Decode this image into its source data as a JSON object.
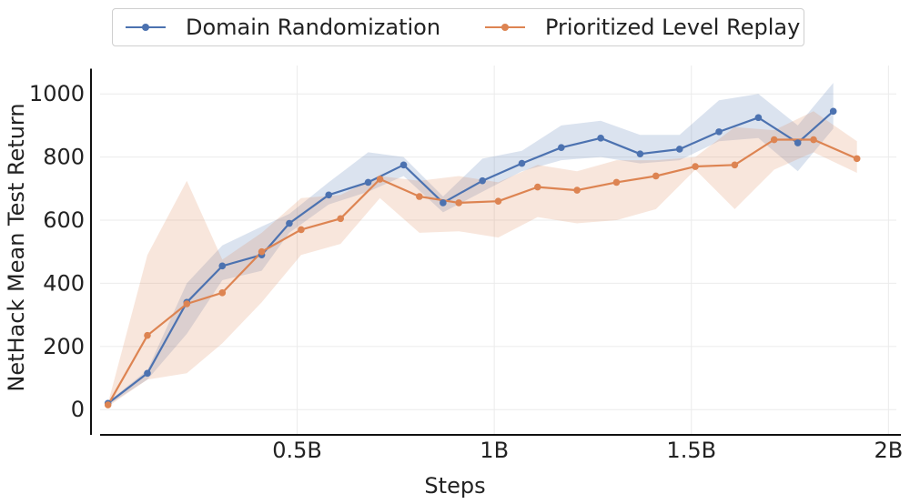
{
  "chart_data": {
    "type": "line",
    "xlabel": "Steps",
    "ylabel": "NetHack Mean Test Return",
    "xlim": [
      0.0,
      2.02
    ],
    "ylim": [
      -80,
      1090
    ],
    "x_ticks": [
      0.5,
      1.0,
      1.5,
      2.0
    ],
    "x_tick_labels": [
      "0.5B",
      "1B",
      "1.5B",
      "2B"
    ],
    "y_ticks": [
      0,
      200,
      400,
      600,
      800,
      1000
    ],
    "y_tick_labels": [
      "0",
      "200",
      "400",
      "600",
      "800",
      "1000"
    ],
    "grid": true,
    "legend_position": "top-center",
    "series": [
      {
        "name": "Domain Randomization",
        "color": "#4c72b0",
        "x": [
          0.02,
          0.12,
          0.22,
          0.31,
          0.41,
          0.48,
          0.58,
          0.68,
          0.77,
          0.87,
          0.97,
          1.07,
          1.17,
          1.27,
          1.37,
          1.47,
          1.57,
          1.67,
          1.77,
          1.86
        ],
        "y": [
          20,
          115,
          340,
          455,
          490,
          590,
          680,
          720,
          775,
          655,
          725,
          780,
          830,
          860,
          810,
          825,
          880,
          925,
          845,
          945
        ],
        "lower": [
          15,
          95,
          240,
          410,
          440,
          560,
          650,
          690,
          740,
          625,
          690,
          755,
          790,
          800,
          780,
          790,
          850,
          860,
          755,
          890
        ],
        "upper": [
          25,
          125,
          400,
          520,
          580,
          620,
          720,
          815,
          800,
          675,
          795,
          820,
          900,
          915,
          870,
          870,
          980,
          1000,
          900,
          1035
        ]
      },
      {
        "name": "Prioritized Level Replay",
        "color": "#dd8452",
        "x": [
          0.02,
          0.12,
          0.22,
          0.31,
          0.41,
          0.51,
          0.61,
          0.71,
          0.81,
          0.91,
          1.01,
          1.11,
          1.21,
          1.31,
          1.41,
          1.51,
          1.61,
          1.71,
          1.81,
          1.92
        ],
        "y": [
          15,
          235,
          335,
          370,
          500,
          570,
          605,
          730,
          675,
          655,
          660,
          705,
          695,
          720,
          740,
          770,
          775,
          855,
          855,
          795
        ],
        "lower": [
          10,
          95,
          115,
          210,
          340,
          490,
          525,
          670,
          560,
          565,
          545,
          610,
          590,
          600,
          635,
          760,
          635,
          760,
          815,
          750
        ],
        "upper": [
          20,
          490,
          725,
          475,
          560,
          670,
          680,
          740,
          725,
          740,
          720,
          775,
          755,
          790,
          790,
          800,
          895,
          885,
          945,
          850
        ]
      }
    ]
  }
}
